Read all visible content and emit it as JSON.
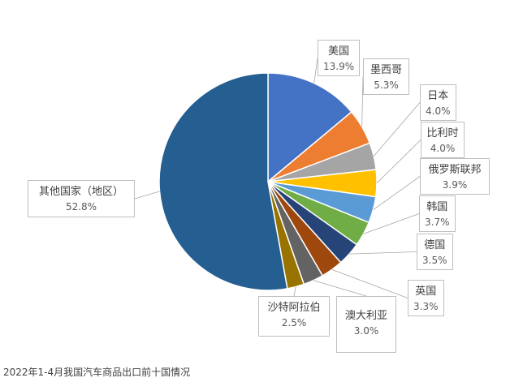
{
  "chart_data": {
    "type": "pie",
    "title": "",
    "slices": [
      {
        "label": "美国",
        "value": 13.9,
        "display": "13.9%",
        "color": "#4472c4"
      },
      {
        "label": "墨西哥",
        "value": 5.3,
        "display": "5.3%",
        "color": "#ed7d31"
      },
      {
        "label": "日本",
        "value": 4.0,
        "display": "4.0%",
        "color": "#a5a5a5"
      },
      {
        "label": "比利时",
        "value": 4.0,
        "display": "4.0%",
        "color": "#ffc000"
      },
      {
        "label": "俄罗斯联邦",
        "value": 3.9,
        "display": "3.9%",
        "color": "#5b9bd5"
      },
      {
        "label": "韩国",
        "value": 3.7,
        "display": "3.7%",
        "color": "#70ad47"
      },
      {
        "label": "德国",
        "value": 3.5,
        "display": "3.5%",
        "color": "#264478"
      },
      {
        "label": "英国",
        "value": 3.3,
        "display": "3.3%",
        "color": "#9e480e"
      },
      {
        "label": "澳大利亚",
        "value": 3.0,
        "display": "3.0%",
        "color": "#636363"
      },
      {
        "label": "沙特阿拉伯",
        "value": 2.5,
        "display": "2.5%",
        "color": "#997300"
      },
      {
        "label": "其他国家（地区）",
        "value": 52.8,
        "display": "52.8%",
        "color": "#255e91"
      }
    ]
  },
  "caption": "2022年1-4月我国汽车商品出口前十国情况"
}
